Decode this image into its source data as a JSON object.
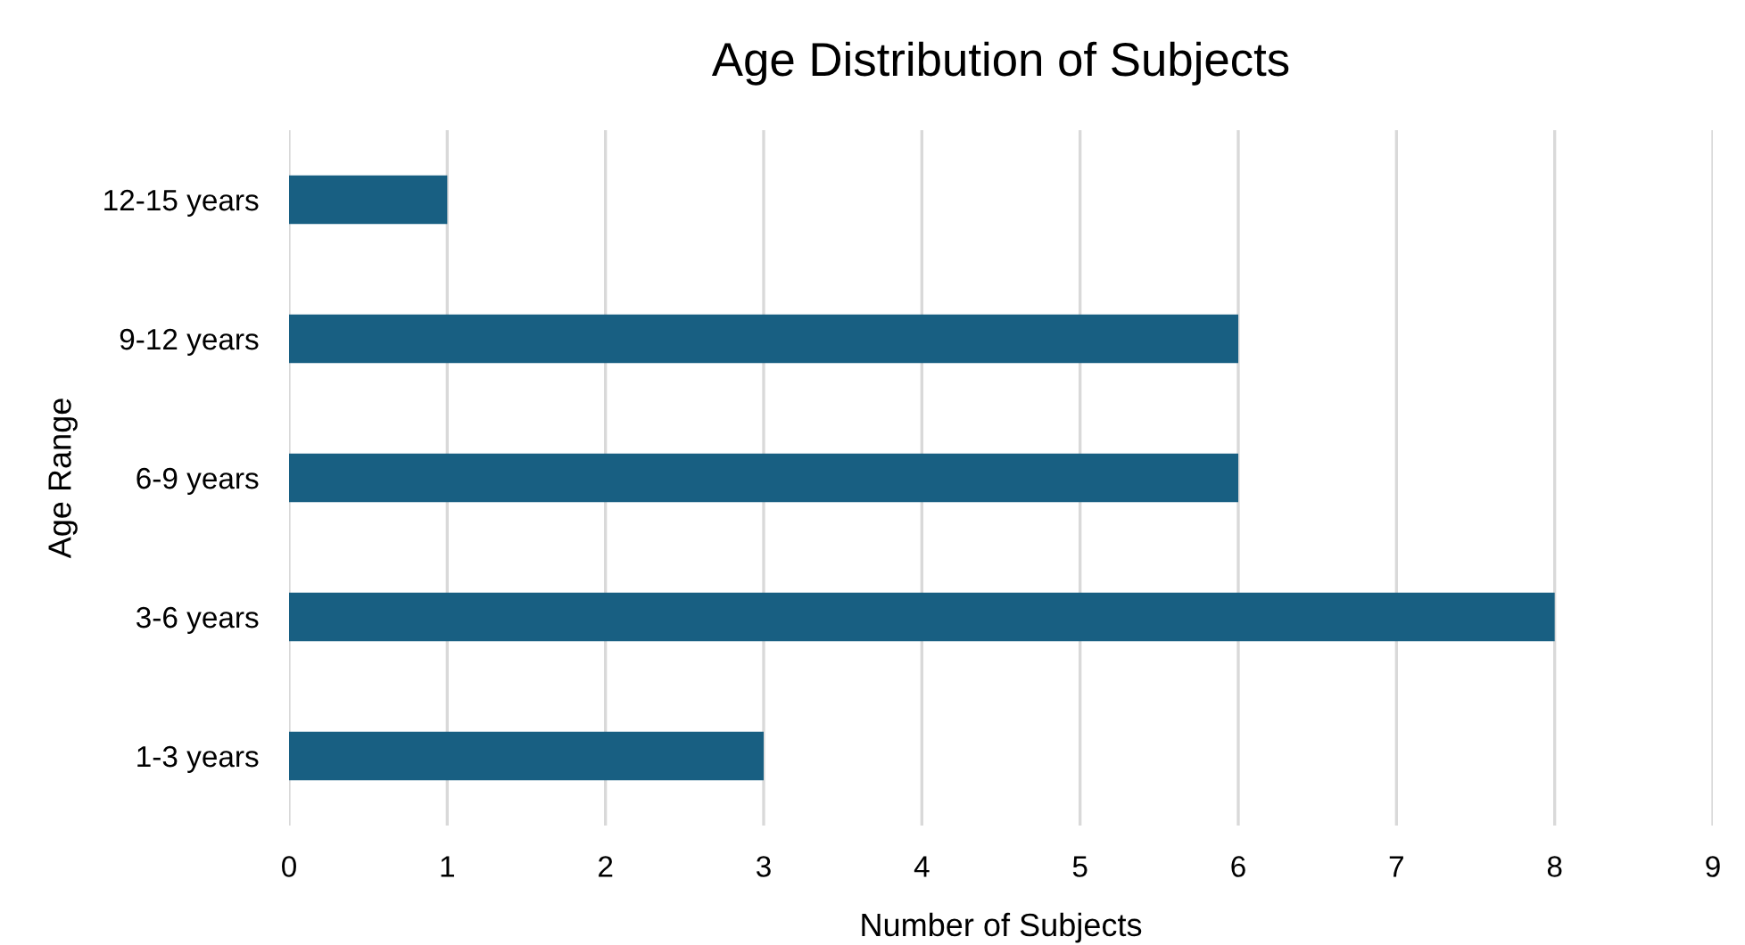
{
  "chart_data": {
    "type": "bar",
    "orientation": "horizontal",
    "title": "Age Distribution of Subjects",
    "xlabel": "Number of Subjects",
    "ylabel": "Age Range",
    "categories": [
      "12-15 years",
      "9-12 years",
      "6-9 years",
      "3-6 years",
      "1-3 years"
    ],
    "values": [
      1,
      6,
      6,
      8,
      3
    ],
    "color": "#185f82",
    "xlim": [
      0,
      9
    ],
    "xticks": [
      0,
      1,
      2,
      3,
      4,
      5,
      6,
      7,
      8,
      9
    ],
    "grid": "x",
    "legend": false
  }
}
